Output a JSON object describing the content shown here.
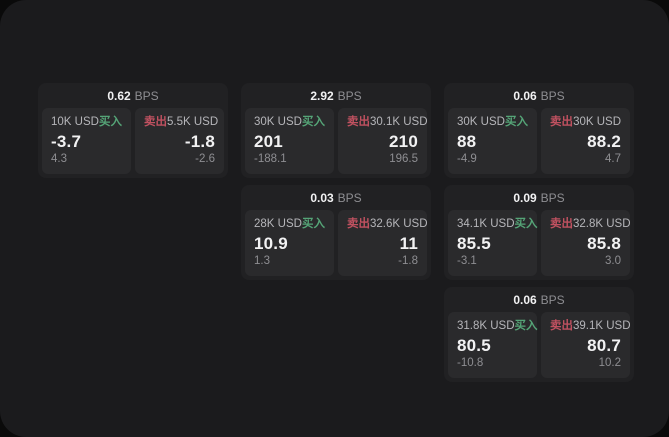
{
  "colors": {
    "page_bg": "#0a0a0a",
    "panel_bg": "#1b1b1d",
    "card_bg": "#212123",
    "tile_bg": "#2a2a2c",
    "buy_green": "#55a477",
    "sell_red": "#c05160",
    "text_primary": "#f2f2f3",
    "text_muted": "#8e8e92"
  },
  "labels": {
    "bps_unit": "BPS",
    "buy": "买入",
    "sell": "卖出"
  },
  "cards": [
    {
      "row": 1,
      "col": 1,
      "bps": "0.62",
      "buy": {
        "notional": "10K USD",
        "price": "-3.7",
        "delta": "4.3"
      },
      "sell": {
        "notional": "5.5K USD",
        "price": "-1.8",
        "delta": "-2.6"
      }
    },
    {
      "row": 1,
      "col": 2,
      "bps": "2.92",
      "buy": {
        "notional": "30K USD",
        "price": "201",
        "delta": "-188.1"
      },
      "sell": {
        "notional": "30.1K USD",
        "price": "210",
        "delta": "196.5"
      }
    },
    {
      "row": 1,
      "col": 3,
      "bps": "0.06",
      "buy": {
        "notional": "30K USD",
        "price": "88",
        "delta": "-4.9"
      },
      "sell": {
        "notional": "30K USD",
        "price": "88.2",
        "delta": "4.7"
      }
    },
    {
      "row": 2,
      "col": 2,
      "bps": "0.03",
      "buy": {
        "notional": "28K USD",
        "price": "10.9",
        "delta": "1.3"
      },
      "sell": {
        "notional": "32.6K USD",
        "price": "11",
        "delta": "-1.8"
      }
    },
    {
      "row": 2,
      "col": 3,
      "bps": "0.09",
      "buy": {
        "notional": "34.1K USD",
        "price": "85.5",
        "delta": "-3.1"
      },
      "sell": {
        "notional": "32.8K USD",
        "price": "85.8",
        "delta": "3.0"
      }
    },
    {
      "row": 3,
      "col": 3,
      "bps": "0.06",
      "buy": {
        "notional": "31.8K USD",
        "price": "80.5",
        "delta": "-10.8"
      },
      "sell": {
        "notional": "39.1K USD",
        "price": "80.7",
        "delta": "10.2"
      }
    }
  ]
}
